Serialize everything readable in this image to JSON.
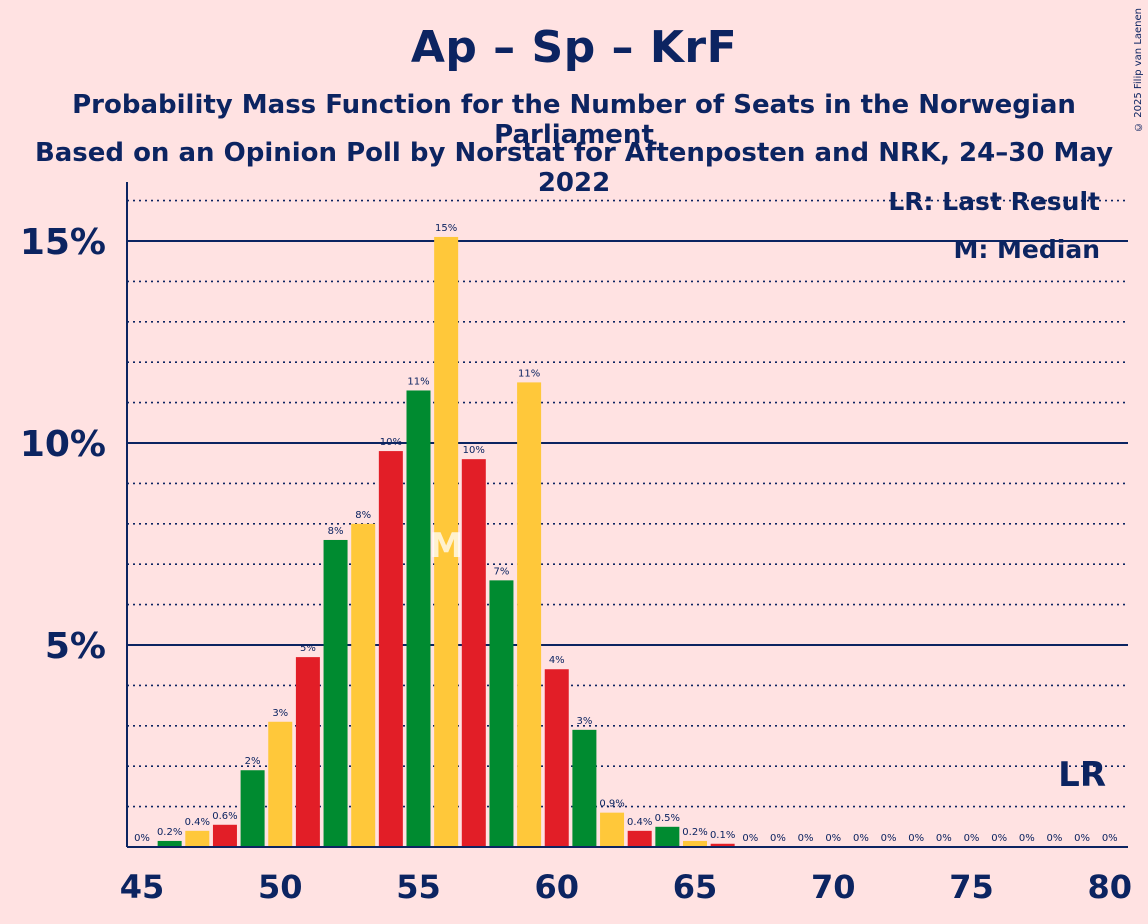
{
  "header": {
    "title": "Ap – Sp – KrF",
    "subtitle1": "Probability Mass Function for the Number of Seats in the Norwegian Parliament",
    "subtitle2": "Based on an Opinion Poll by Norstat for Aftenposten and NRK, 24–30 May 2022",
    "copyright": "© 2025 Filip van Laenen"
  },
  "legend": {
    "lr": "LR: Last Result",
    "median": "M: Median"
  },
  "markers": {
    "median_label": "M",
    "median_seat": 56,
    "last_result_label": "LR",
    "last_result_seat": 79
  },
  "colors": {
    "background": "#FFE2E2",
    "text": "#0C2461",
    "green": "#008B30",
    "yellow": "#FFC83A",
    "red": "#E21E27"
  },
  "chart_data": {
    "type": "bar",
    "xlim": [
      45,
      80
    ],
    "ylim": [
      0,
      16
    ],
    "x_ticks": [
      45,
      50,
      55,
      60,
      65,
      70,
      75,
      80
    ],
    "x_tick_labels": [
      "45",
      "50",
      "55",
      "60",
      "65",
      "70",
      "75",
      "80"
    ],
    "y_ticks": [
      5,
      10,
      15
    ],
    "y_tick_labels": [
      "5%",
      "10%",
      "15%"
    ],
    "seats": [
      45,
      46,
      47,
      48,
      49,
      50,
      51,
      52,
      53,
      54,
      55,
      56,
      57,
      58,
      59,
      60,
      61,
      62,
      63,
      64,
      65,
      66,
      67,
      68,
      69,
      70,
      71,
      72,
      73,
      74,
      75,
      76,
      77,
      78,
      79,
      80
    ],
    "values": [
      0,
      0.15,
      0.4,
      0.55,
      1.9,
      3.1,
      4.7,
      7.6,
      8.0,
      9.8,
      11.3,
      15.1,
      9.6,
      6.6,
      11.5,
      4.4,
      2.9,
      0.85,
      0.4,
      0.5,
      0.15,
      0.08,
      0,
      0,
      0,
      0,
      0,
      0,
      0,
      0,
      0,
      0,
      0,
      0,
      0,
      0
    ],
    "labels": [
      "0%",
      "0.2%",
      "0.4%",
      "0.6%",
      "2%",
      "3%",
      "5%",
      "8%",
      "8%",
      "10%",
      "11%",
      "15%",
      "10%",
      "7%",
      "11%",
      "4%",
      "3%",
      "0.9%",
      "0.4%",
      "0.5%",
      "0.2%",
      "0.1%",
      "0%",
      "0%",
      "0%",
      "0%",
      "0%",
      "0%",
      "0%",
      "0%",
      "0%",
      "0%",
      "0%",
      "0%",
      "0%",
      "0%"
    ],
    "bar_colors": [
      "green",
      "green",
      "yellow",
      "red",
      "green",
      "yellow",
      "red",
      "green",
      "yellow",
      "red",
      "green",
      "yellow",
      "red",
      "green",
      "yellow",
      "red",
      "green",
      "yellow",
      "red",
      "green",
      "yellow",
      "red",
      "green",
      "yellow",
      "red",
      "green",
      "yellow",
      "red",
      "green",
      "yellow",
      "red",
      "green",
      "yellow",
      "red",
      "green",
      "yellow"
    ],
    "grid": "solid lines at 5% steps, dotted lines at 1% steps"
  }
}
